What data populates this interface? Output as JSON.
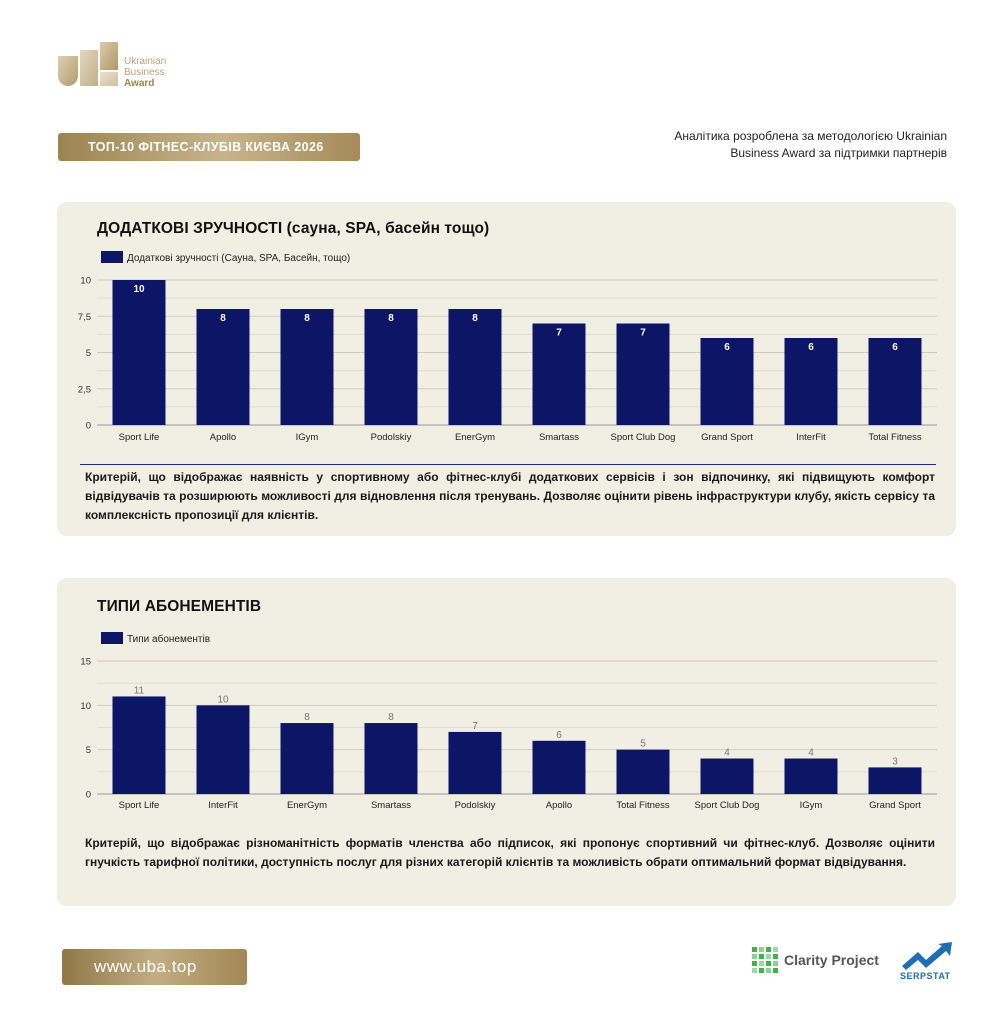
{
  "brand": {
    "logo_line1": "Ukrainian",
    "logo_line2": "Business",
    "logo_line3": "Award",
    "gold_color": "#b09a6e"
  },
  "header": {
    "title": "ТОП-10 ФІТНЕС-КЛУБІВ КИЄВА 2026",
    "note_line1": "Аналітика розроблена за методологією Ukrainian",
    "note_line2": "Business Award за підтримки партнерів"
  },
  "sections": [
    {
      "title": "ДОДАТКОВІ ЗРУЧНОСТІ (сауна, SPA, басейн тощо)",
      "description": "Критерій, що відображає наявність у спортивному або фітнес-клубі додаткових сервісів і зон відпочинку, які підвищують комфорт відвідувачів та розширюють можливості для відновлення після тренувань. Дозволяє оцінити рівень інфраструктури клубу, якість сервісу та комплексність пропозиції для клієнтів."
    },
    {
      "title": "ТИПИ АБОНЕМЕНТІВ",
      "description": "Критерій, що відображає різноманітність форматів членства або підписок, які пропонує спортивний чи фітнес-клуб. Дозволяє оцінити гнучкість тарифної політики, доступність послуг для різних категорій клієнтів та можливість обрати оптимальний формат відвідування."
    }
  ],
  "chart_data": [
    {
      "type": "bar",
      "categories": [
        "Sport Life",
        "Apollo",
        "IGym",
        "Podolskiy",
        "EnerGym",
        "Smartass",
        "Sport Club Dog",
        "Grand Sport",
        "InterFit",
        "Total Fitness"
      ],
      "series": [
        {
          "name": "Додаткові зручності (Сауна, SPA, Басейн, тощо)",
          "values": [
            10,
            8,
            8,
            8,
            8,
            7,
            7,
            6,
            6,
            6
          ],
          "color": "#0c1566"
        }
      ],
      "yticks": [
        "0",
        "2,5",
        "5",
        "7,5",
        "10"
      ],
      "ylim": [
        0,
        10
      ],
      "grid": true,
      "legend": "top-left",
      "data_labels": "inside-top-white"
    },
    {
      "type": "bar",
      "categories": [
        "Sport Life",
        "InterFit",
        "EnerGym",
        "Smartass",
        "Podolskiy",
        "Apollo",
        "Total Fitness",
        "Sport Club Dog",
        "IGym",
        "Grand Sport"
      ],
      "series": [
        {
          "name": "Типи абонементів",
          "values": [
            11,
            10,
            8,
            8,
            7,
            6,
            5,
            4,
            4,
            3
          ],
          "color": "#0c1566"
        }
      ],
      "yticks": [
        "0",
        "5",
        "10",
        "15"
      ],
      "ylim": [
        0,
        15
      ],
      "grid": true,
      "legend": "top-left",
      "data_labels": "above-grey"
    }
  ],
  "footer": {
    "url": "www.uba.top",
    "partner1": "Clarity Project",
    "partner2": "SERPSTAT"
  }
}
